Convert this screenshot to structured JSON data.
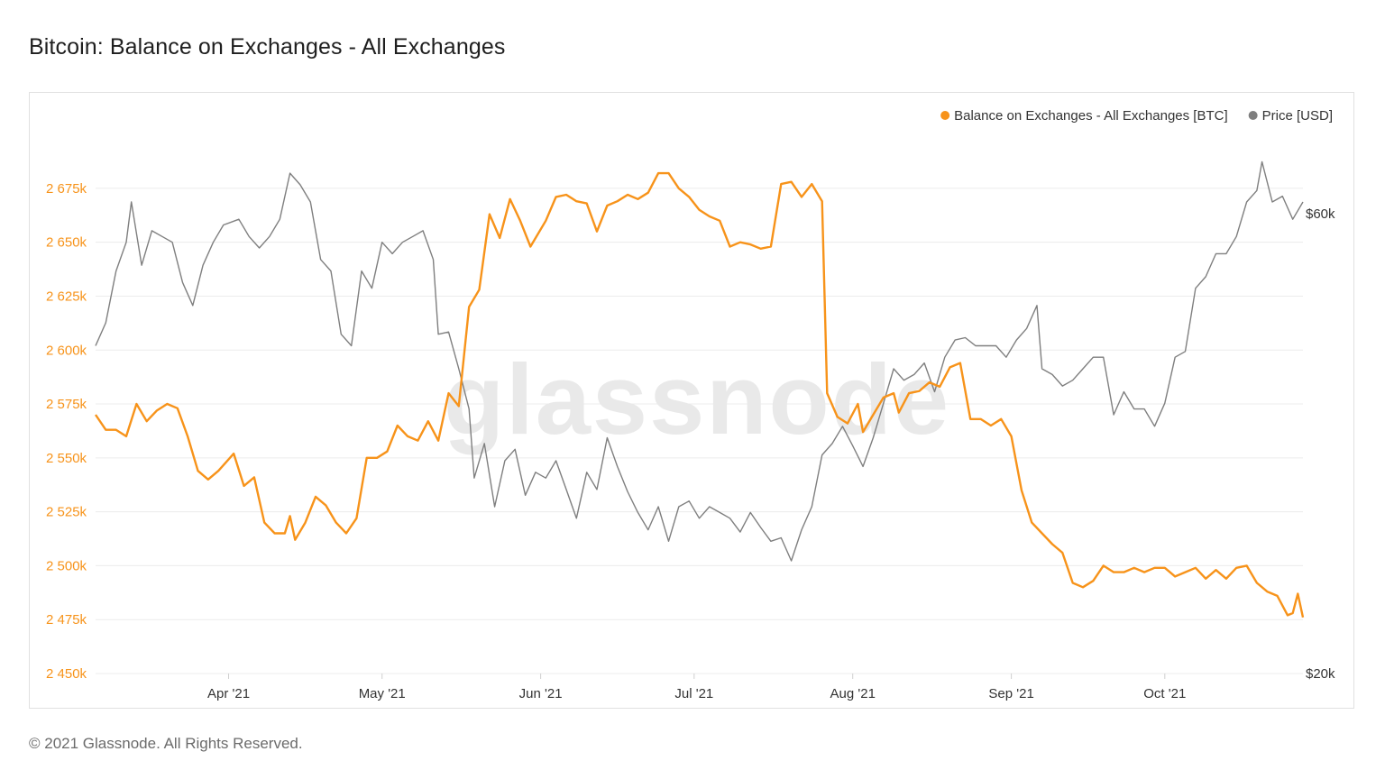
{
  "header": {
    "title": "Bitcoin: Balance on Exchanges - All Exchanges"
  },
  "footer": {
    "copyright": "© 2021 Glassnode. All Rights Reserved."
  },
  "watermark": "glassnode",
  "colors": {
    "balance": "#f7931a",
    "price": "#7f7f7f",
    "grid": "#ececec"
  },
  "chart_data": {
    "type": "line",
    "title": "Bitcoin: Balance on Exchanges - All Exchanges",
    "x_range": [
      "2021-03-06",
      "2021-10-28"
    ],
    "x_ticks": [
      {
        "label": "Apr '21",
        "date": "2021-04-01"
      },
      {
        "label": "May '21",
        "date": "2021-05-01"
      },
      {
        "label": "Jun '21",
        "date": "2021-06-01"
      },
      {
        "label": "Jul '21",
        "date": "2021-07-01"
      },
      {
        "label": "Aug '21",
        "date": "2021-08-01"
      },
      {
        "label": "Sep '21",
        "date": "2021-09-01"
      },
      {
        "label": "Oct '21",
        "date": "2021-10-01"
      }
    ],
    "y_left": {
      "ylim": [
        2450000,
        2690000
      ],
      "ticks": [
        {
          "label": "2 450k",
          "value": 2450000
        },
        {
          "label": "2 475k",
          "value": 2475000
        },
        {
          "label": "2 500k",
          "value": 2500000
        },
        {
          "label": "2 525k",
          "value": 2525000
        },
        {
          "label": "2 550k",
          "value": 2550000
        },
        {
          "label": "2 575k",
          "value": 2575000
        },
        {
          "label": "2 600k",
          "value": 2600000
        },
        {
          "label": "2 625k",
          "value": 2625000
        },
        {
          "label": "2 650k",
          "value": 2650000
        },
        {
          "label": "2 675k",
          "value": 2675000
        }
      ]
    },
    "y_right": {
      "ylim": [
        20000,
        65000
      ],
      "ticks": [
        {
          "label": "$20k",
          "value": 20000
        },
        {
          "label": "$60k",
          "value": 60000
        }
      ]
    },
    "legend": {
      "placement": "top-right"
    },
    "grid": true,
    "series": [
      {
        "name": "Balance on Exchanges - All Exchanges [BTC]",
        "axis": "left",
        "points": [
          [
            "2021-03-06",
            2570000
          ],
          [
            "2021-03-08",
            2563000
          ],
          [
            "2021-03-10",
            2563000
          ],
          [
            "2021-03-12",
            2560000
          ],
          [
            "2021-03-14",
            2575000
          ],
          [
            "2021-03-16",
            2567000
          ],
          [
            "2021-03-18",
            2572000
          ],
          [
            "2021-03-20",
            2575000
          ],
          [
            "2021-03-22",
            2573000
          ],
          [
            "2021-03-24",
            2560000
          ],
          [
            "2021-03-26",
            2544000
          ],
          [
            "2021-03-28",
            2540000
          ],
          [
            "2021-03-30",
            2544000
          ],
          [
            "2021-04-02",
            2552000
          ],
          [
            "2021-04-04",
            2537000
          ],
          [
            "2021-04-06",
            2541000
          ],
          [
            "2021-04-08",
            2520000
          ],
          [
            "2021-04-10",
            2515000
          ],
          [
            "2021-04-12",
            2515000
          ],
          [
            "2021-04-13",
            2523000
          ],
          [
            "2021-04-14",
            2512000
          ],
          [
            "2021-04-16",
            2520000
          ],
          [
            "2021-04-18",
            2532000
          ],
          [
            "2021-04-20",
            2528000
          ],
          [
            "2021-04-22",
            2520000
          ],
          [
            "2021-04-24",
            2515000
          ],
          [
            "2021-04-26",
            2522000
          ],
          [
            "2021-04-28",
            2550000
          ],
          [
            "2021-04-30",
            2550000
          ],
          [
            "2021-05-02",
            2553000
          ],
          [
            "2021-05-04",
            2565000
          ],
          [
            "2021-05-06",
            2560000
          ],
          [
            "2021-05-08",
            2558000
          ],
          [
            "2021-05-10",
            2567000
          ],
          [
            "2021-05-12",
            2558000
          ],
          [
            "2021-05-14",
            2580000
          ],
          [
            "2021-05-16",
            2574000
          ],
          [
            "2021-05-18",
            2620000
          ],
          [
            "2021-05-20",
            2628000
          ],
          [
            "2021-05-22",
            2663000
          ],
          [
            "2021-05-24",
            2652000
          ],
          [
            "2021-05-26",
            2670000
          ],
          [
            "2021-05-28",
            2660000
          ],
          [
            "2021-05-30",
            2648000
          ],
          [
            "2021-06-02",
            2660000
          ],
          [
            "2021-06-04",
            2671000
          ],
          [
            "2021-06-06",
            2672000
          ],
          [
            "2021-06-08",
            2669000
          ],
          [
            "2021-06-10",
            2668000
          ],
          [
            "2021-06-12",
            2655000
          ],
          [
            "2021-06-14",
            2667000
          ],
          [
            "2021-06-16",
            2669000
          ],
          [
            "2021-06-18",
            2672000
          ],
          [
            "2021-06-20",
            2670000
          ],
          [
            "2021-06-22",
            2673000
          ],
          [
            "2021-06-24",
            2682000
          ],
          [
            "2021-06-26",
            2682000
          ],
          [
            "2021-06-28",
            2675000
          ],
          [
            "2021-06-30",
            2671000
          ],
          [
            "2021-07-02",
            2665000
          ],
          [
            "2021-07-04",
            2662000
          ],
          [
            "2021-07-06",
            2660000
          ],
          [
            "2021-07-08",
            2648000
          ],
          [
            "2021-07-10",
            2650000
          ],
          [
            "2021-07-12",
            2649000
          ],
          [
            "2021-07-14",
            2647000
          ],
          [
            "2021-07-16",
            2648000
          ],
          [
            "2021-07-18",
            2677000
          ],
          [
            "2021-07-20",
            2678000
          ],
          [
            "2021-07-22",
            2671000
          ],
          [
            "2021-07-24",
            2677000
          ],
          [
            "2021-07-26",
            2669000
          ],
          [
            "2021-07-27",
            2580000
          ],
          [
            "2021-07-29",
            2569000
          ],
          [
            "2021-07-31",
            2566000
          ],
          [
            "2021-08-02",
            2575000
          ],
          [
            "2021-08-03",
            2562000
          ],
          [
            "2021-08-05",
            2570000
          ],
          [
            "2021-08-07",
            2578000
          ],
          [
            "2021-08-09",
            2580000
          ],
          [
            "2021-08-10",
            2571000
          ],
          [
            "2021-08-12",
            2580000
          ],
          [
            "2021-08-14",
            2581000
          ],
          [
            "2021-08-16",
            2585000
          ],
          [
            "2021-08-18",
            2583000
          ],
          [
            "2021-08-20",
            2592000
          ],
          [
            "2021-08-22",
            2594000
          ],
          [
            "2021-08-24",
            2568000
          ],
          [
            "2021-08-26",
            2568000
          ],
          [
            "2021-08-28",
            2565000
          ],
          [
            "2021-08-30",
            2568000
          ],
          [
            "2021-09-01",
            2560000
          ],
          [
            "2021-09-03",
            2535000
          ],
          [
            "2021-09-05",
            2520000
          ],
          [
            "2021-09-07",
            2515000
          ],
          [
            "2021-09-09",
            2510000
          ],
          [
            "2021-09-11",
            2506000
          ],
          [
            "2021-09-13",
            2492000
          ],
          [
            "2021-09-15",
            2490000
          ],
          [
            "2021-09-17",
            2493000
          ],
          [
            "2021-09-19",
            2500000
          ],
          [
            "2021-09-21",
            2497000
          ],
          [
            "2021-09-23",
            2497000
          ],
          [
            "2021-09-25",
            2499000
          ],
          [
            "2021-09-27",
            2497000
          ],
          [
            "2021-09-29",
            2499000
          ],
          [
            "2021-10-01",
            2499000
          ],
          [
            "2021-10-03",
            2495000
          ],
          [
            "2021-10-05",
            2497000
          ],
          [
            "2021-10-07",
            2499000
          ],
          [
            "2021-10-09",
            2494000
          ],
          [
            "2021-10-11",
            2498000
          ],
          [
            "2021-10-13",
            2494000
          ],
          [
            "2021-10-15",
            2499000
          ],
          [
            "2021-10-17",
            2500000
          ],
          [
            "2021-10-19",
            2492000
          ],
          [
            "2021-10-21",
            2488000
          ],
          [
            "2021-10-23",
            2486000
          ],
          [
            "2021-10-25",
            2477000
          ],
          [
            "2021-10-26",
            2478000
          ],
          [
            "2021-10-27",
            2487000
          ],
          [
            "2021-10-28",
            2476000
          ]
        ]
      },
      {
        "name": "Price [USD]",
        "axis": "right",
        "points": [
          [
            "2021-03-06",
            48500
          ],
          [
            "2021-03-08",
            50500
          ],
          [
            "2021-03-10",
            55000
          ],
          [
            "2021-03-12",
            57500
          ],
          [
            "2021-03-13",
            61000
          ],
          [
            "2021-03-15",
            55500
          ],
          [
            "2021-03-17",
            58500
          ],
          [
            "2021-03-19",
            58000
          ],
          [
            "2021-03-21",
            57500
          ],
          [
            "2021-03-23",
            54000
          ],
          [
            "2021-03-25",
            52000
          ],
          [
            "2021-03-27",
            55500
          ],
          [
            "2021-03-29",
            57500
          ],
          [
            "2021-03-31",
            59000
          ],
          [
            "2021-04-03",
            59500
          ],
          [
            "2021-04-05",
            58000
          ],
          [
            "2021-04-07",
            57000
          ],
          [
            "2021-04-09",
            58000
          ],
          [
            "2021-04-11",
            59500
          ],
          [
            "2021-04-13",
            63500
          ],
          [
            "2021-04-15",
            62500
          ],
          [
            "2021-04-17",
            61000
          ],
          [
            "2021-04-19",
            56000
          ],
          [
            "2021-04-21",
            55000
          ],
          [
            "2021-04-23",
            49500
          ],
          [
            "2021-04-25",
            48500
          ],
          [
            "2021-04-27",
            55000
          ],
          [
            "2021-04-29",
            53500
          ],
          [
            "2021-05-01",
            57500
          ],
          [
            "2021-05-03",
            56500
          ],
          [
            "2021-05-05",
            57500
          ],
          [
            "2021-05-07",
            58000
          ],
          [
            "2021-05-09",
            58500
          ],
          [
            "2021-05-11",
            56000
          ],
          [
            "2021-05-12",
            49500
          ],
          [
            "2021-05-14",
            49700
          ],
          [
            "2021-05-16",
            46500
          ],
          [
            "2021-05-18",
            43000
          ],
          [
            "2021-05-19",
            37000
          ],
          [
            "2021-05-21",
            40000
          ],
          [
            "2021-05-23",
            34500
          ],
          [
            "2021-05-25",
            38500
          ],
          [
            "2021-05-27",
            39500
          ],
          [
            "2021-05-29",
            35500
          ],
          [
            "2021-05-31",
            37500
          ],
          [
            "2021-06-02",
            37000
          ],
          [
            "2021-06-04",
            38500
          ],
          [
            "2021-06-06",
            36000
          ],
          [
            "2021-06-08",
            33500
          ],
          [
            "2021-06-10",
            37500
          ],
          [
            "2021-06-12",
            36000
          ],
          [
            "2021-06-14",
            40500
          ],
          [
            "2021-06-16",
            38000
          ],
          [
            "2021-06-18",
            35800
          ],
          [
            "2021-06-20",
            34000
          ],
          [
            "2021-06-22",
            32500
          ],
          [
            "2021-06-24",
            34500
          ],
          [
            "2021-06-26",
            31500
          ],
          [
            "2021-06-28",
            34500
          ],
          [
            "2021-06-30",
            35000
          ],
          [
            "2021-07-02",
            33500
          ],
          [
            "2021-07-04",
            34500
          ],
          [
            "2021-07-06",
            34000
          ],
          [
            "2021-07-08",
            33500
          ],
          [
            "2021-07-10",
            32300
          ],
          [
            "2021-07-12",
            34000
          ],
          [
            "2021-07-14",
            32700
          ],
          [
            "2021-07-16",
            31500
          ],
          [
            "2021-07-18",
            31800
          ],
          [
            "2021-07-20",
            29800
          ],
          [
            "2021-07-22",
            32500
          ],
          [
            "2021-07-24",
            34500
          ],
          [
            "2021-07-26",
            39000
          ],
          [
            "2021-07-28",
            40000
          ],
          [
            "2021-07-30",
            41500
          ],
          [
            "2021-08-01",
            39800
          ],
          [
            "2021-08-03",
            38000
          ],
          [
            "2021-08-05",
            40500
          ],
          [
            "2021-08-07",
            43500
          ],
          [
            "2021-08-09",
            46500
          ],
          [
            "2021-08-11",
            45500
          ],
          [
            "2021-08-13",
            46000
          ],
          [
            "2021-08-15",
            47000
          ],
          [
            "2021-08-17",
            44500
          ],
          [
            "2021-08-19",
            47500
          ],
          [
            "2021-08-21",
            49000
          ],
          [
            "2021-08-23",
            49200
          ],
          [
            "2021-08-25",
            48500
          ],
          [
            "2021-08-27",
            48500
          ],
          [
            "2021-08-29",
            48500
          ],
          [
            "2021-08-31",
            47500
          ],
          [
            "2021-09-02",
            49000
          ],
          [
            "2021-09-04",
            50000
          ],
          [
            "2021-09-06",
            52000
          ],
          [
            "2021-09-07",
            46500
          ],
          [
            "2021-09-09",
            46000
          ],
          [
            "2021-09-11",
            45000
          ],
          [
            "2021-09-13",
            45500
          ],
          [
            "2021-09-15",
            46500
          ],
          [
            "2021-09-17",
            47500
          ],
          [
            "2021-09-19",
            47500
          ],
          [
            "2021-09-21",
            42500
          ],
          [
            "2021-09-23",
            44500
          ],
          [
            "2021-09-25",
            43000
          ],
          [
            "2021-09-27",
            43000
          ],
          [
            "2021-09-29",
            41500
          ],
          [
            "2021-10-01",
            43500
          ],
          [
            "2021-10-03",
            47500
          ],
          [
            "2021-10-05",
            48000
          ],
          [
            "2021-10-07",
            53500
          ],
          [
            "2021-10-09",
            54500
          ],
          [
            "2021-10-11",
            56500
          ],
          [
            "2021-10-13",
            56500
          ],
          [
            "2021-10-15",
            58000
          ],
          [
            "2021-10-17",
            61000
          ],
          [
            "2021-10-19",
            62000
          ],
          [
            "2021-10-20",
            64500
          ],
          [
            "2021-10-22",
            61000
          ],
          [
            "2021-10-24",
            61500
          ],
          [
            "2021-10-26",
            59500
          ],
          [
            "2021-10-28",
            61000
          ]
        ]
      }
    ]
  }
}
